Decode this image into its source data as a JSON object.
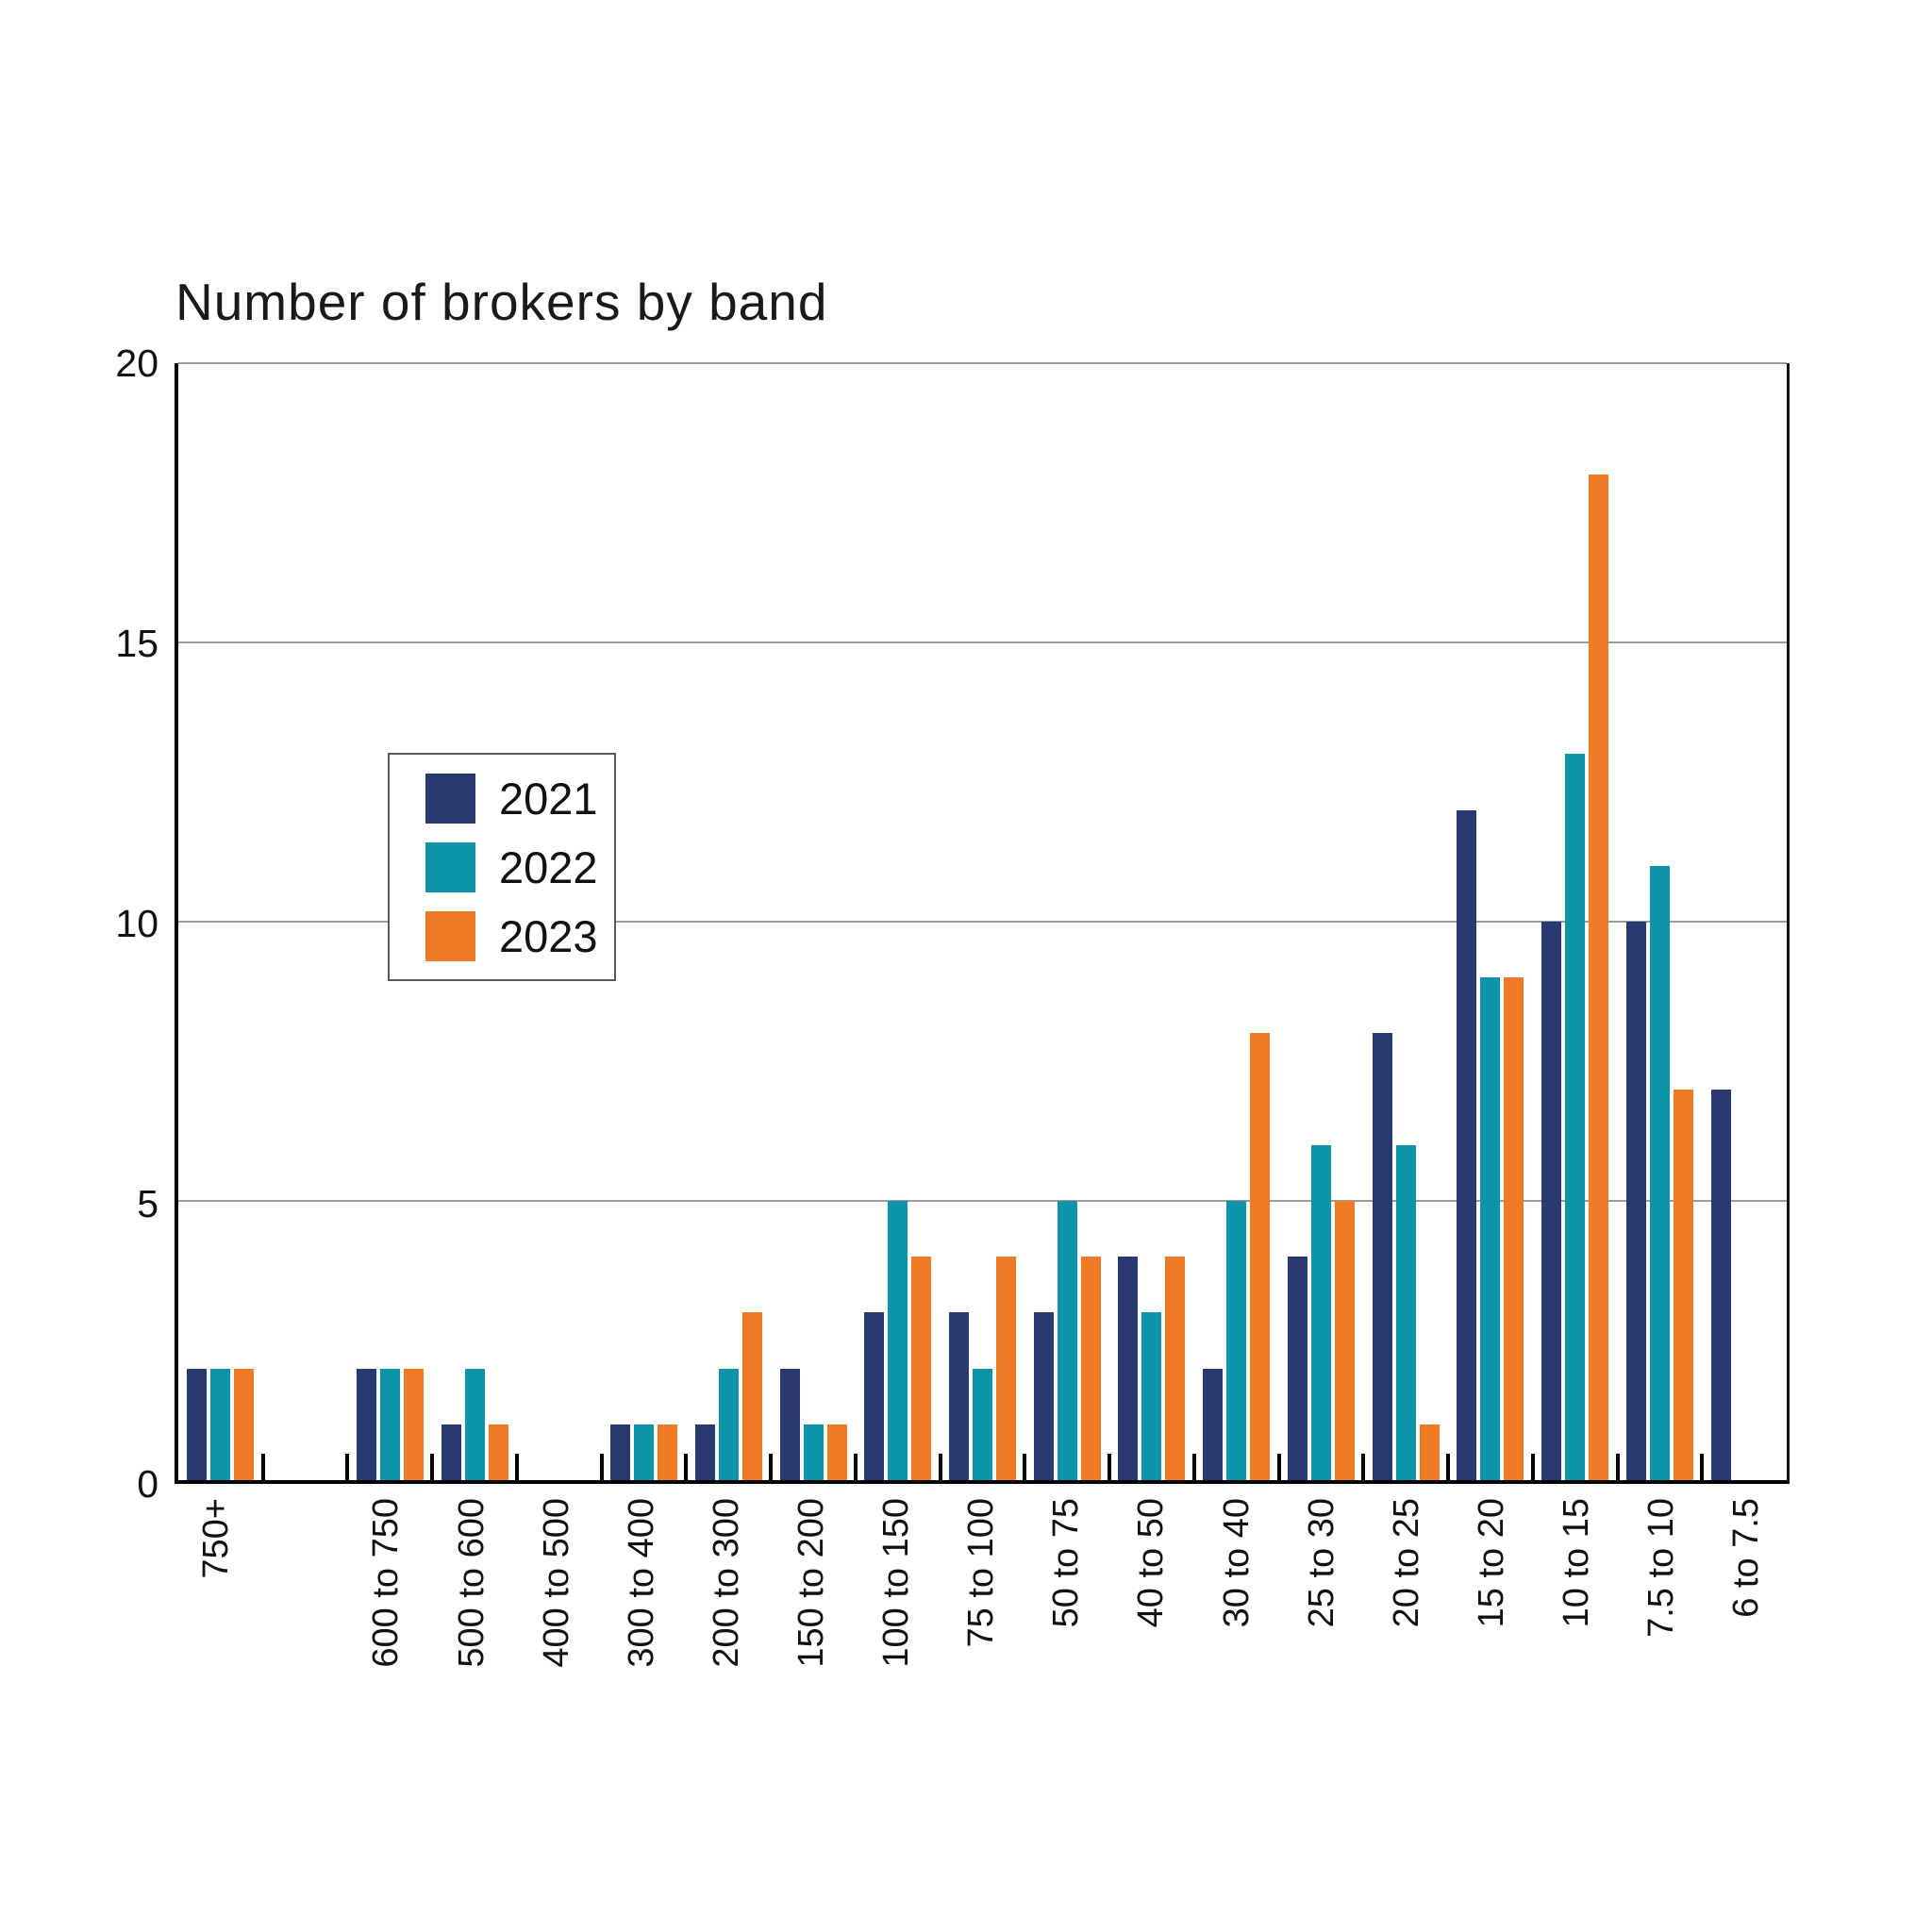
{
  "title": "Number of brokers by band",
  "chart_data": {
    "type": "bar",
    "title": "Number of brokers by band",
    "categories": [
      "750+",
      "",
      "600 to 750",
      "500 to 600",
      "400 to 500",
      "300 to 400",
      "200 to 300",
      "150 to 200",
      "100 to 150",
      "75 to 100",
      "50 to 75",
      "40 to 50",
      "30 to 40",
      "25 to 30",
      "20 to 25",
      "15 to 20",
      "10 to 15",
      "7.5 to 10",
      "6 to 7.5"
    ],
    "series": [
      {
        "name": "2021",
        "color": "#293971",
        "values": [
          2,
          0,
          2,
          1,
          0,
          1,
          1,
          2,
          3,
          3,
          3,
          4,
          2,
          4,
          8,
          12,
          10,
          10,
          7
        ]
      },
      {
        "name": "2022",
        "color": "#0E94A8",
        "values": [
          2,
          0,
          2,
          2,
          0,
          1,
          2,
          1,
          5,
          2,
          5,
          3,
          5,
          6,
          6,
          9,
          13,
          11,
          0
        ]
      },
      {
        "name": "2023",
        "color": "#F07A25",
        "values": [
          2,
          0,
          2,
          1,
          0,
          1,
          3,
          1,
          4,
          4,
          4,
          4,
          8,
          5,
          1,
          9,
          18,
          7,
          0
        ]
      }
    ],
    "xlabel": "",
    "ylabel": "",
    "ylim": [
      0,
      20
    ],
    "yticks": [
      0,
      5,
      10,
      15,
      20
    ],
    "grid": true,
    "legend_position": "top-left",
    "gridline_color": "#9b9b9b",
    "axis_color": "#000000"
  }
}
